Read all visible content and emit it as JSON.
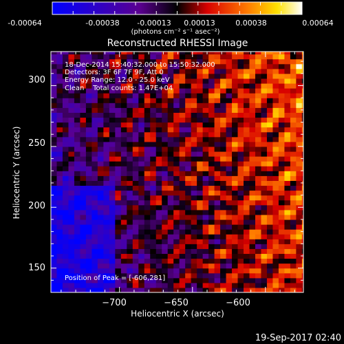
{
  "colorbar": {
    "ticks": [
      "-0.00064",
      "-0.00038",
      "-0.00013",
      "0.00013",
      "0.00038",
      "0.00064"
    ],
    "unit_label": "(photons cm⁻² s⁻¹ asec⁻²)",
    "range": [
      -0.00064,
      0.00064
    ],
    "colors": [
      "#0000ff",
      "#5a0090",
      "#000000",
      "#d80000",
      "#ff7a00",
      "#ffe000",
      "#ffffff"
    ]
  },
  "plot": {
    "title": "Reconstructed RHESSI Image",
    "annotations": [
      "18-Dec-2014 15:40:32.000 to 15:50:32.000",
      "Detectors: 3F 6F 7F 9F, Att 0",
      "Energy Range: 12.0 - 25.0 keV",
      "Clean    Total counts: 1.47E+04"
    ],
    "peak_label": "Position of Peak = [-606,281]"
  },
  "footer": {
    "timestamp": "19-Sep-2017 02:40"
  },
  "chart_data": {
    "type": "heatmap",
    "title": "Reconstructed RHESSI Image",
    "xlabel": "Heliocentric X (arcsec)",
    "ylabel": "Heliocentric Y (arcsec)",
    "xlim": [
      -747,
      -574
    ],
    "ylim": [
      130,
      328
    ],
    "xticks": [
      -700,
      -650,
      -600
    ],
    "yticks": [
      150,
      200,
      250,
      300
    ],
    "xtick_labels": [
      "−700",
      "−650",
      "−600"
    ],
    "ytick_labels": [
      "150",
      "200",
      "250",
      "300"
    ],
    "value_range": [
      -0.00064,
      0.00064
    ],
    "peak_position": [
      -606,
      281
    ],
    "grid": false
  }
}
